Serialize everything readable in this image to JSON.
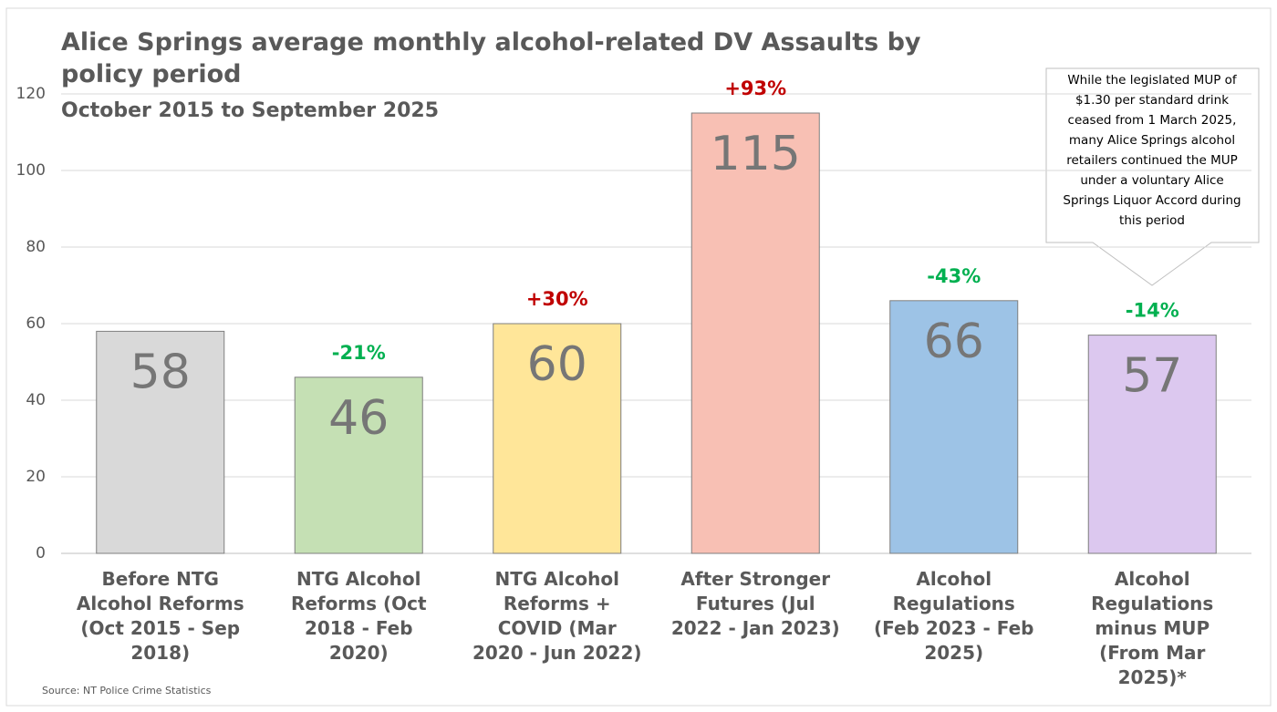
{
  "chart_data": {
    "type": "bar",
    "title": "Alice Springs average monthly alcohol-related DV Assaults by policy period",
    "subtitle": "October 2015 to September 2025",
    "source": "Source: NT Police Crime Statistics",
    "categories": [
      "Before NTG Alcohol Reforms (Oct 2015 - Sep 2018)",
      "NTG Alcohol Reforms (Oct 2018 - Feb 2020)",
      "NTG Alcohol Reforms + COVID (Mar 2020 - Jun 2022)",
      "After Stronger Futures (Jul 2022 - Jan 2023)",
      "Alcohol Regulations (Feb 2023 - Feb 2025)",
      "Alcohol Regulations minus MUP (From Mar 2025)*"
    ],
    "values": [
      58,
      46,
      60,
      115,
      66,
      57
    ],
    "colors": [
      "#d9d9d9",
      "#c5e0b4",
      "#ffe699",
      "#f8c0b4",
      "#9dc3e6",
      "#dcc8ef"
    ],
    "changes": [
      null,
      "-21%",
      "+30%",
      "+93%",
      "-43%",
      "-14%"
    ],
    "change_colors": [
      null,
      "#00b050",
      "#c00000",
      "#c00000",
      "#00b050",
      "#00b050"
    ],
    "callout": [
      "While the legislated MUP of",
      "$1.30 per standard drink",
      "ceased from 1 March 2025,",
      "many Alice Springs alcohol",
      "retailers  continued the MUP",
      "under a voluntary Alice",
      "Springs Liquor Accord during",
      "this period"
    ],
    "ylim": [
      0,
      120
    ],
    "yticks": [
      0,
      20,
      40,
      60,
      80,
      100,
      120
    ],
    "grid": true
  }
}
